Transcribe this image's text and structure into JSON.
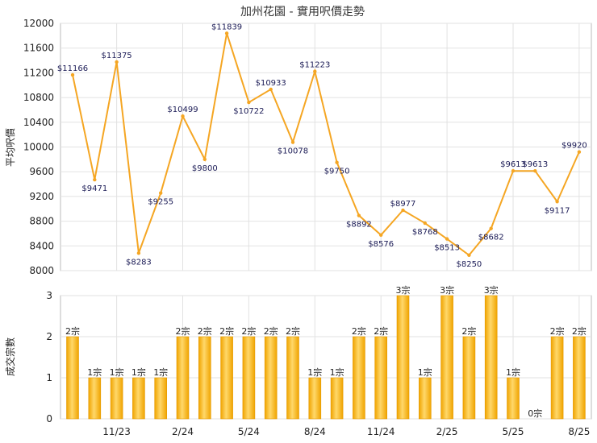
{
  "chart_data": [
    {
      "type": "line",
      "title": "加州花園 - 實用呎價走勢",
      "ylabel": "平均呎價",
      "ylim": [
        8000,
        12000
      ],
      "yticks": [
        8000,
        8400,
        8800,
        9200,
        9600,
        10000,
        10400,
        10800,
        11200,
        11600,
        12000
      ],
      "color": "#f5a623",
      "points": [
        {
          "slot": 0,
          "value": 11166,
          "label": "$11166"
        },
        {
          "slot": 1,
          "value": 9471,
          "label": "$9471"
        },
        {
          "slot": 2,
          "value": 11375,
          "label": "$11375"
        },
        {
          "slot": 3,
          "value": 8283,
          "label": "$8283"
        },
        {
          "slot": 4,
          "value": 9255,
          "label": "$9255"
        },
        {
          "slot": 5,
          "value": 10499,
          "label": "$10499"
        },
        {
          "slot": 6,
          "value": 9800,
          "label": "$9800"
        },
        {
          "slot": 7,
          "value": 11839,
          "label": "$11839"
        },
        {
          "slot": 8,
          "value": 10722,
          "label": "$10722"
        },
        {
          "slot": 9,
          "value": 10933,
          "label": "$10933"
        },
        {
          "slot": 10,
          "value": 10078,
          "label": "$10078"
        },
        {
          "slot": 11,
          "value": 11223,
          "label": "$11223"
        },
        {
          "slot": 12,
          "value": 9750,
          "label": "$9750"
        },
        {
          "slot": 13,
          "value": 8892,
          "label": "$8892"
        },
        {
          "slot": 14,
          "value": 8576,
          "label": "$8576"
        },
        {
          "slot": 15,
          "value": 8977,
          "label": "$8977"
        },
        {
          "slot": 16,
          "value": 8768,
          "label": "$8768"
        },
        {
          "slot": 17,
          "value": 8513,
          "label": "$8513"
        },
        {
          "slot": 18,
          "value": 8250,
          "label": "$8250"
        },
        {
          "slot": 19,
          "value": 8682,
          "label": "$8682"
        },
        {
          "slot": 20,
          "value": 9613,
          "label": "$9613"
        },
        {
          "slot": 21,
          "value": 9613,
          "label": "$9613"
        },
        {
          "slot": 22,
          "value": 9117,
          "label": "$9117"
        },
        {
          "slot": 23,
          "value": 9920,
          "label": "$9920"
        }
      ]
    },
    {
      "type": "bar",
      "ylabel": "成交宗數",
      "ylim": [
        0,
        3
      ],
      "yticks": [
        0,
        1,
        2,
        3
      ],
      "color": "#f5b731",
      "categories": [
        "",
        "",
        "11/23",
        "",
        "",
        "2/24",
        "",
        "",
        "5/24",
        "",
        "",
        "8/24",
        "",
        "",
        "11/24",
        "",
        "",
        "2/25",
        "",
        "",
        "5/25",
        "",
        "",
        "8/25"
      ],
      "values": [
        2,
        1,
        1,
        1,
        1,
        2,
        2,
        2,
        2,
        2,
        2,
        1,
        1,
        2,
        2,
        3,
        1,
        3,
        2,
        3,
        1,
        0,
        2,
        2
      ],
      "labels": [
        "2宗",
        "1宗",
        "1宗",
        "1宗",
        "1宗",
        "2宗",
        "2宗",
        "2宗",
        "2宗",
        "2宗",
        "2宗",
        "1宗",
        "1宗",
        "2宗",
        "2宗",
        "3宗",
        "1宗",
        "3宗",
        "2宗",
        "3宗",
        "1宗",
        "0宗",
        "2宗",
        "2宗"
      ]
    }
  ]
}
